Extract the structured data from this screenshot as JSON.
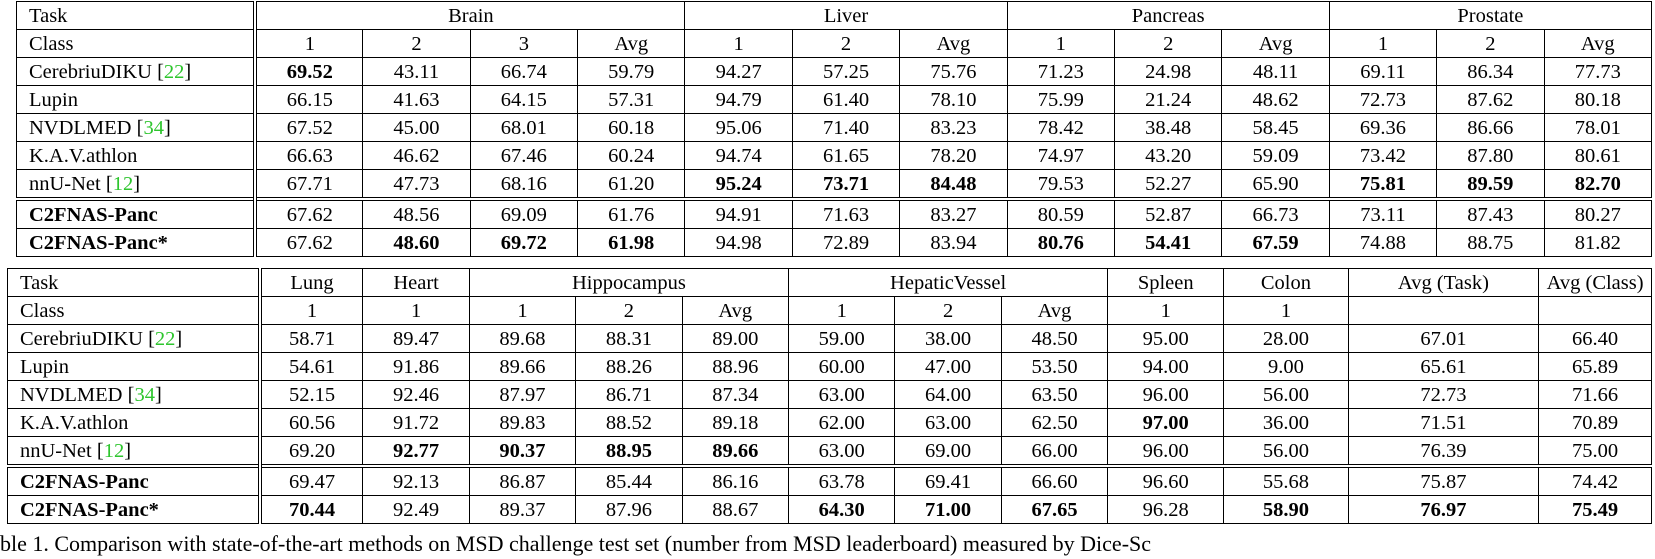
{
  "top_table": {
    "task_label": "Task",
    "class_label": "Class",
    "tasks": [
      {
        "name": "Brain",
        "classes": [
          "1",
          "2",
          "3",
          "Avg"
        ]
      },
      {
        "name": "Liver",
        "classes": [
          "1",
          "2",
          "Avg"
        ]
      },
      {
        "name": "Pancreas",
        "classes": [
          "1",
          "2",
          "Avg"
        ]
      },
      {
        "name": "Prostate",
        "classes": [
          "1",
          "2",
          "Avg"
        ]
      }
    ],
    "rows": [
      {
        "method": "CerebriuDIKU",
        "cite": "22",
        "values": [
          "69.52",
          "43.11",
          "66.74",
          "59.79",
          "94.27",
          "57.25",
          "75.76",
          "71.23",
          "24.98",
          "48.11",
          "69.11",
          "86.34",
          "77.73"
        ],
        "bold": [
          0
        ]
      },
      {
        "method": "Lupin",
        "cite": "",
        "values": [
          "66.15",
          "41.63",
          "64.15",
          "57.31",
          "94.79",
          "61.40",
          "78.10",
          "75.99",
          "21.24",
          "48.62",
          "72.73",
          "87.62",
          "80.18"
        ],
        "bold": []
      },
      {
        "method": "NVDLMED",
        "cite": "34",
        "values": [
          "67.52",
          "45.00",
          "68.01",
          "60.18",
          "95.06",
          "71.40",
          "83.23",
          "78.42",
          "38.48",
          "58.45",
          "69.36",
          "86.66",
          "78.01"
        ],
        "bold": []
      },
      {
        "method": "K.A.V.athlon",
        "cite": "",
        "values": [
          "66.63",
          "46.62",
          "67.46",
          "60.24",
          "94.74",
          "61.65",
          "78.20",
          "74.97",
          "43.20",
          "59.09",
          "73.42",
          "87.80",
          "80.61"
        ],
        "bold": []
      },
      {
        "method": "nnU-Net",
        "cite": "12",
        "values": [
          "67.71",
          "47.73",
          "68.16",
          "61.20",
          "95.24",
          "73.71",
          "84.48",
          "79.53",
          "52.27",
          "65.90",
          "75.81",
          "89.59",
          "82.70"
        ],
        "bold": [
          4,
          5,
          6,
          10,
          11,
          12
        ]
      },
      {
        "method": "C2FNAS-Panc",
        "cite": "",
        "method_bold": true,
        "values": [
          "67.62",
          "48.56",
          "69.09",
          "61.76",
          "94.91",
          "71.63",
          "83.27",
          "80.59",
          "52.87",
          "66.73",
          "73.11",
          "87.43",
          "80.27"
        ],
        "bold": []
      },
      {
        "method": "C2FNAS-Panc*",
        "cite": "",
        "method_bold": true,
        "values": [
          "67.62",
          "48.60",
          "69.72",
          "61.98",
          "94.98",
          "72.89",
          "83.94",
          "80.76",
          "54.41",
          "67.59",
          "74.88",
          "88.75",
          "81.82"
        ],
        "bold": [
          1,
          2,
          3,
          7,
          8,
          9
        ]
      }
    ]
  },
  "bottom_table": {
    "task_label": "Task",
    "class_label": "Class",
    "tasks": [
      {
        "name": "Lung",
        "classes": [
          "1"
        ]
      },
      {
        "name": "Heart",
        "classes": [
          "1"
        ]
      },
      {
        "name": "Hippocampus",
        "classes": [
          "1",
          "2",
          "Avg"
        ]
      },
      {
        "name": "HepaticVessel",
        "classes": [
          "1",
          "2",
          "Avg"
        ]
      },
      {
        "name": "Spleen",
        "classes": [
          "1"
        ]
      },
      {
        "name": "Colon",
        "classes": [
          "1"
        ]
      },
      {
        "name": "Avg (Task)",
        "classes": [
          ""
        ]
      },
      {
        "name": "Avg (Class)",
        "classes": [
          ""
        ]
      }
    ],
    "rows": [
      {
        "method": "CerebriuDIKU",
        "cite": "22",
        "values": [
          "58.71",
          "89.47",
          "89.68",
          "88.31",
          "89.00",
          "59.00",
          "38.00",
          "48.50",
          "95.00",
          "28.00",
          "67.01",
          "66.40"
        ],
        "bold": []
      },
      {
        "method": "Lupin",
        "cite": "",
        "values": [
          "54.61",
          "91.86",
          "89.66",
          "88.26",
          "88.96",
          "60.00",
          "47.00",
          "53.50",
          "94.00",
          "9.00",
          "65.61",
          "65.89"
        ],
        "bold": []
      },
      {
        "method": "NVDLMED",
        "cite": "34",
        "values": [
          "52.15",
          "92.46",
          "87.97",
          "86.71",
          "87.34",
          "63.00",
          "64.00",
          "63.50",
          "96.00",
          "56.00",
          "72.73",
          "71.66"
        ],
        "bold": []
      },
      {
        "method": "K.A.V.athlon",
        "cite": "",
        "values": [
          "60.56",
          "91.72",
          "89.83",
          "88.52",
          "89.18",
          "62.00",
          "63.00",
          "62.50",
          "97.00",
          "36.00",
          "71.51",
          "70.89"
        ],
        "bold": [
          8
        ]
      },
      {
        "method": "nnU-Net",
        "cite": "12",
        "values": [
          "69.20",
          "92.77",
          "90.37",
          "88.95",
          "89.66",
          "63.00",
          "69.00",
          "66.00",
          "96.00",
          "56.00",
          "76.39",
          "75.00"
        ],
        "bold": [
          1,
          2,
          3,
          4
        ]
      },
      {
        "method": "C2FNAS-Panc",
        "cite": "",
        "method_bold": true,
        "values": [
          "69.47",
          "92.13",
          "86.87",
          "85.44",
          "86.16",
          "63.78",
          "69.41",
          "66.60",
          "96.60",
          "55.68",
          "75.87",
          "74.42"
        ],
        "bold": []
      },
      {
        "method": "C2FNAS-Panc*",
        "cite": "",
        "method_bold": true,
        "values": [
          "70.44",
          "92.49",
          "89.37",
          "87.96",
          "88.67",
          "64.30",
          "71.00",
          "67.65",
          "96.28",
          "58.90",
          "76.97",
          "75.49"
        ],
        "bold": [
          0,
          5,
          6,
          7,
          9,
          10,
          11
        ]
      }
    ]
  },
  "caption": {
    "text": "ble 1. Comparison with state-of-the-art methods on MSD challenge test set (number from MSD leaderboard) measured by Dice-Sc"
  }
}
